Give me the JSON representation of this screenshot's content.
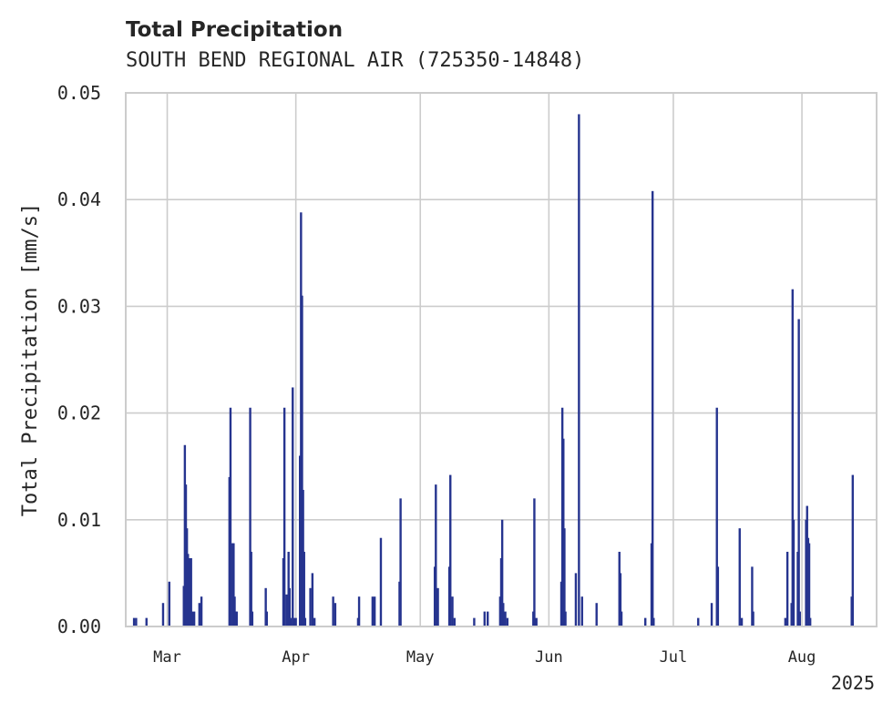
{
  "chart_data": {
    "type": "bar",
    "title": "Total Precipitation",
    "subtitle": "SOUTH BEND REGIONAL AIR (725350-14848)",
    "xlabel": "",
    "ylabel": "Total Precipitation [mm/s]",
    "x_axis": {
      "type": "date",
      "range": [
        "2025-02-19",
        "2025-08-19"
      ],
      "ticks": [
        {
          "date": "2025-03-01",
          "label": "Mar"
        },
        {
          "date": "2025-04-01",
          "label": "Apr"
        },
        {
          "date": "2025-05-01",
          "label": "May"
        },
        {
          "date": "2025-06-01",
          "label": "Jun"
        },
        {
          "date": "2025-07-01",
          "label": "Jul"
        },
        {
          "date": "2025-08-01",
          "label": "Aug"
        }
      ],
      "year_label": "2025"
    },
    "y_axis": {
      "ylim": [
        0,
        0.05
      ],
      "ticks": [
        {
          "value": 0.0,
          "label": "0.00"
        },
        {
          "value": 0.01,
          "label": "0.01"
        },
        {
          "value": 0.02,
          "label": "0.02"
        },
        {
          "value": 0.03,
          "label": "0.03"
        },
        {
          "value": 0.04,
          "label": "0.04"
        },
        {
          "value": 0.05,
          "label": "0.05"
        }
      ]
    },
    "grid": true,
    "color": "#26348f",
    "points": [
      [
        "2025-02-21T00:00",
        0.0008
      ],
      [
        "2025-02-21T12:00",
        0.0008
      ],
      [
        "2025-02-24T00:00",
        0.0008
      ],
      [
        "2025-02-28T00:00",
        0.0022
      ],
      [
        "2025-03-01T12:00",
        0.0042
      ],
      [
        "2025-03-05T00:00",
        0.0038
      ],
      [
        "2025-03-05T06:00",
        0.017
      ],
      [
        "2025-03-05T12:00",
        0.0133
      ],
      [
        "2025-03-05T18:00",
        0.0092
      ],
      [
        "2025-03-06T00:00",
        0.0068
      ],
      [
        "2025-03-06T06:00",
        0.0064
      ],
      [
        "2025-03-06T18:00",
        0.0064
      ],
      [
        "2025-03-07T00:00",
        0.0014
      ],
      [
        "2025-03-07T12:00",
        0.0014
      ],
      [
        "2025-03-08T18:00",
        0.0022
      ],
      [
        "2025-03-09T06:00",
        0.0028
      ],
      [
        "2025-03-16T00:00",
        0.014
      ],
      [
        "2025-03-16T06:00",
        0.0205
      ],
      [
        "2025-03-16T18:00",
        0.0078
      ],
      [
        "2025-03-17T00:00",
        0.0078
      ],
      [
        "2025-03-17T06:00",
        0.0028
      ],
      [
        "2025-03-17T12:00",
        0.0014
      ],
      [
        "2025-03-17T18:00",
        0.0014
      ],
      [
        "2025-03-21T00:00",
        0.0205
      ],
      [
        "2025-03-21T06:00",
        0.007
      ],
      [
        "2025-03-21T12:00",
        0.0014
      ],
      [
        "2025-03-24T18:00",
        0.0036
      ],
      [
        "2025-03-25T00:00",
        0.0014
      ],
      [
        "2025-03-29T00:00",
        0.0064
      ],
      [
        "2025-03-29T06:00",
        0.0205
      ],
      [
        "2025-03-29T18:00",
        0.003
      ],
      [
        "2025-03-30T06:00",
        0.007
      ],
      [
        "2025-03-30T12:00",
        0.0036
      ],
      [
        "2025-03-30T18:00",
        0.0008
      ],
      [
        "2025-03-31T06:00",
        0.0224
      ],
      [
        "2025-03-31T12:00",
        0.0008
      ],
      [
        "2025-04-01T00:00",
        0.0008
      ],
      [
        "2025-04-02T00:00",
        0.016
      ],
      [
        "2025-04-02T06:00",
        0.0388
      ],
      [
        "2025-04-02T12:00",
        0.031
      ],
      [
        "2025-04-02T18:00",
        0.0128
      ],
      [
        "2025-04-03T00:00",
        0.007
      ],
      [
        "2025-04-03T06:00",
        0.0008
      ],
      [
        "2025-04-04T12:00",
        0.0036
      ],
      [
        "2025-04-05T00:00",
        0.005
      ],
      [
        "2025-04-05T12:00",
        0.0008
      ],
      [
        "2025-04-10T00:00",
        0.0028
      ],
      [
        "2025-04-10T12:00",
        0.0022
      ],
      [
        "2025-04-16T00:00",
        0.0008
      ],
      [
        "2025-04-16T06:00",
        0.0028
      ],
      [
        "2025-04-19T12:00",
        0.0028
      ],
      [
        "2025-04-20T00:00",
        0.0028
      ],
      [
        "2025-04-21T12:00",
        0.0083
      ],
      [
        "2025-04-26T00:00",
        0.0042
      ],
      [
        "2025-04-26T06:00",
        0.012
      ],
      [
        "2025-05-04T12:00",
        0.0056
      ],
      [
        "2025-05-04T18:00",
        0.0133
      ],
      [
        "2025-05-05T06:00",
        0.0036
      ],
      [
        "2025-05-08T00:00",
        0.0056
      ],
      [
        "2025-05-08T06:00",
        0.0142
      ],
      [
        "2025-05-08T18:00",
        0.0028
      ],
      [
        "2025-05-09T06:00",
        0.0008
      ],
      [
        "2025-05-14T00:00",
        0.0008
      ],
      [
        "2025-05-16T12:00",
        0.0014
      ],
      [
        "2025-05-17T06:00",
        0.0014
      ],
      [
        "2025-05-20T06:00",
        0.0028
      ],
      [
        "2025-05-20T12:00",
        0.0064
      ],
      [
        "2025-05-20T18:00",
        0.01
      ],
      [
        "2025-05-21T00:00",
        0.0022
      ],
      [
        "2025-05-21T12:00",
        0.0014
      ],
      [
        "2025-05-22T00:00",
        0.0008
      ],
      [
        "2025-05-28T06:00",
        0.0014
      ],
      [
        "2025-05-28T12:00",
        0.012
      ],
      [
        "2025-05-29T00:00",
        0.0008
      ],
      [
        "2025-06-04T00:00",
        0.0042
      ],
      [
        "2025-06-04T06:00",
        0.0205
      ],
      [
        "2025-06-04T12:00",
        0.0176
      ],
      [
        "2025-06-04T18:00",
        0.0092
      ],
      [
        "2025-06-05T00:00",
        0.0014
      ],
      [
        "2025-06-07T12:00",
        0.005
      ],
      [
        "2025-06-08T06:00",
        0.048
      ],
      [
        "2025-06-09T00:00",
        0.0028
      ],
      [
        "2025-06-12T12:00",
        0.0022
      ],
      [
        "2025-06-18T00:00",
        0.007
      ],
      [
        "2025-06-18T06:00",
        0.005
      ],
      [
        "2025-06-18T12:00",
        0.0014
      ],
      [
        "2025-06-24T06:00",
        0.0008
      ],
      [
        "2025-06-25T18:00",
        0.0078
      ],
      [
        "2025-06-26T00:00",
        0.0408
      ],
      [
        "2025-06-26T06:00",
        0.0008
      ],
      [
        "2025-07-07T00:00",
        0.0008
      ],
      [
        "2025-07-10T06:00",
        0.0022
      ],
      [
        "2025-07-11T12:00",
        0.0205
      ],
      [
        "2025-07-11T18:00",
        0.0056
      ],
      [
        "2025-07-17T00:00",
        0.0092
      ],
      [
        "2025-07-17T12:00",
        0.0008
      ],
      [
        "2025-07-20T00:00",
        0.0056
      ],
      [
        "2025-07-20T06:00",
        0.0014
      ],
      [
        "2025-07-28T00:00",
        0.0008
      ],
      [
        "2025-07-28T12:00",
        0.007
      ],
      [
        "2025-07-29T12:00",
        0.0022
      ],
      [
        "2025-07-29T18:00",
        0.0316
      ],
      [
        "2025-07-30T00:00",
        0.01
      ],
      [
        "2025-07-31T00:00",
        0.007
      ],
      [
        "2025-07-31T06:00",
        0.0288
      ],
      [
        "2025-07-31T12:00",
        0.0014
      ],
      [
        "2025-08-02T00:00",
        0.01
      ],
      [
        "2025-08-02T06:00",
        0.0113
      ],
      [
        "2025-08-02T12:00",
        0.0083
      ],
      [
        "2025-08-02T18:00",
        0.0078
      ],
      [
        "2025-08-03T00:00",
        0.0008
      ],
      [
        "2025-08-13T00:00",
        0.0028
      ],
      [
        "2025-08-13T06:00",
        0.0142
      ]
    ]
  }
}
